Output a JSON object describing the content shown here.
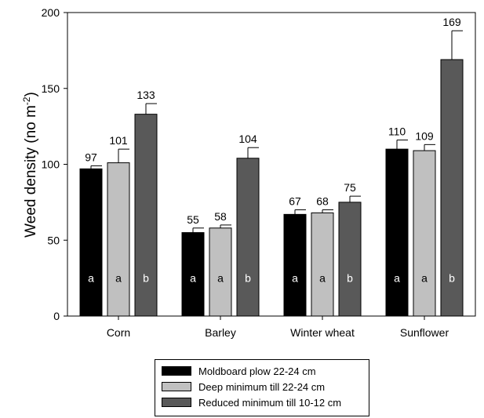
{
  "chart_data": {
    "type": "bar",
    "title": "",
    "xlabel": "",
    "ylabel": "Weed density (no m",
    "ylabel_superscript": "-2",
    "ylabel_suffix": ")",
    "ylim": [
      0,
      200
    ],
    "yticks": [
      "0",
      "50",
      "100",
      "150",
      "200"
    ],
    "categories": [
      "Corn",
      "Barley",
      "Winter wheat",
      "Sunflower"
    ],
    "series": [
      {
        "name": "Moldboard plow 22-24 cm",
        "color": "#000000",
        "values": [
          97,
          55,
          67,
          110
        ],
        "errors": [
          2,
          3,
          3,
          6
        ],
        "letters": [
          "a",
          "a",
          "a",
          "a"
        ],
        "labels": [
          "97",
          "55",
          "67",
          "110"
        ]
      },
      {
        "name": "Deep minimum till 22-24 cm",
        "color": "#c0c0c0",
        "values": [
          101,
          58,
          68,
          109
        ],
        "errors": [
          9,
          2,
          2,
          4
        ],
        "letters": [
          "a",
          "a",
          "a",
          "a"
        ],
        "labels": [
          "101",
          "58",
          "68",
          "109"
        ]
      },
      {
        "name": "Reduced minimum till 10-12 cm",
        "color": "#595959",
        "values": [
          133,
          104,
          75,
          169
        ],
        "errors": [
          7,
          7,
          4,
          19
        ],
        "letters": [
          "b",
          "b",
          "b",
          "b"
        ],
        "labels": [
          "133",
          "104",
          "75",
          "169"
        ]
      }
    ],
    "grid": false,
    "legend_position": "bottom-center"
  }
}
